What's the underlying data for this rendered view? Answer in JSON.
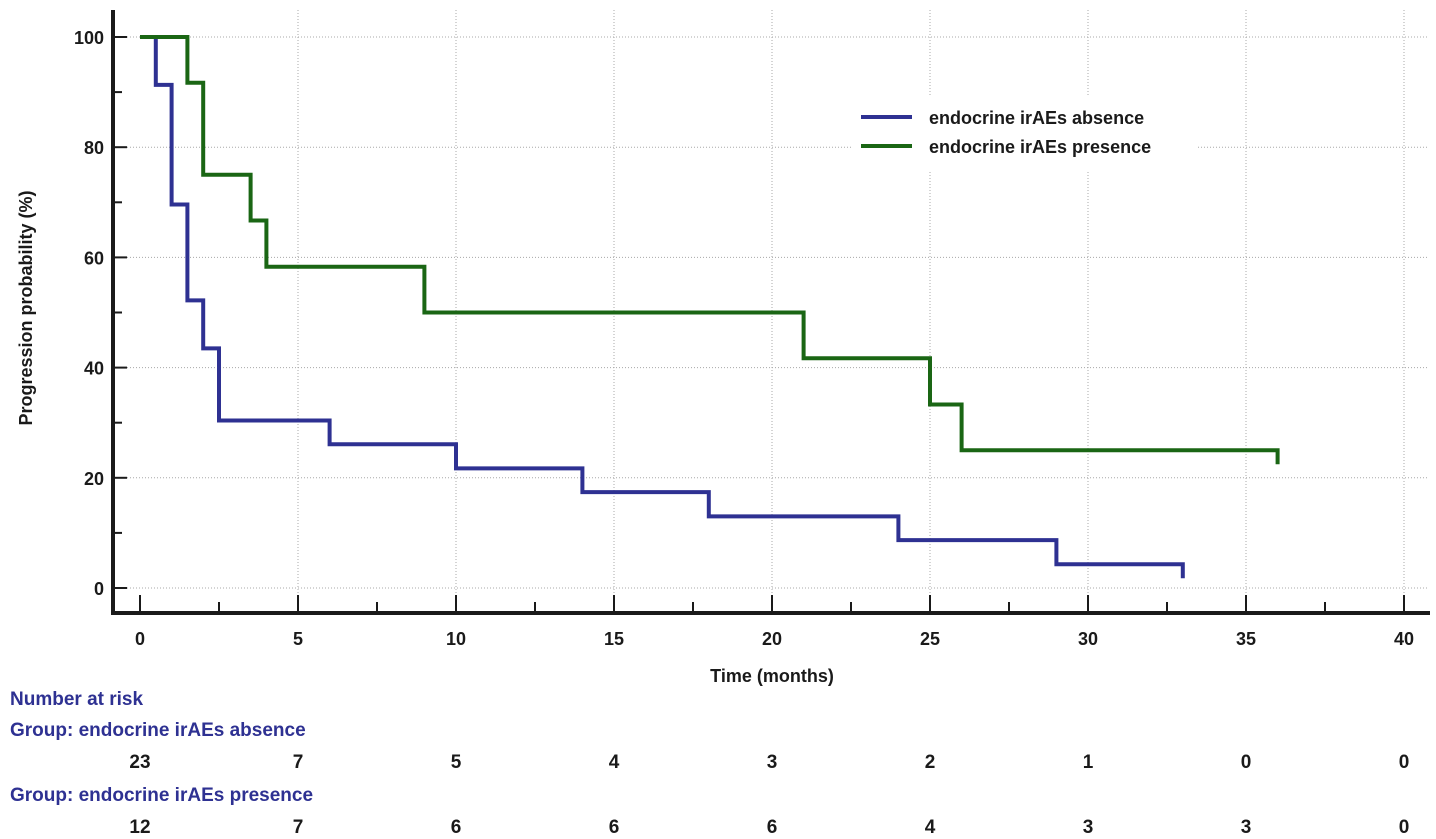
{
  "chart_data": {
    "type": "line",
    "subtype": "kaplan-meier step",
    "title": "",
    "xlabel": "Time (months)",
    "ylabel": "Progression probability (%)",
    "xlim": [
      0,
      40
    ],
    "ylim": [
      0,
      100
    ],
    "x_ticks": [
      0,
      5,
      10,
      15,
      20,
      25,
      30,
      35,
      40
    ],
    "y_ticks": [
      0,
      20,
      40,
      60,
      80,
      100
    ],
    "grid": true,
    "legend_position": "top-right",
    "series": [
      {
        "name": "endocrine irAEs absence",
        "color": "#2e3192",
        "steps": [
          [
            0,
            100
          ],
          [
            0.5,
            91.3
          ],
          [
            1,
            69.6
          ],
          [
            1.5,
            52.2
          ],
          [
            2,
            43.5
          ],
          [
            2.5,
            30.4
          ],
          [
            6,
            26.1
          ],
          [
            10,
            21.7
          ],
          [
            14,
            17.4
          ],
          [
            18,
            13.0
          ],
          [
            24,
            8.7
          ],
          [
            29,
            4.3
          ]
        ],
        "end_x": 33
      },
      {
        "name": "endocrine irAEs presence",
        "color": "#1a6614",
        "steps": [
          [
            0,
            100
          ],
          [
            1.5,
            91.7
          ],
          [
            2,
            75.0
          ],
          [
            3.5,
            66.7
          ],
          [
            4,
            58.3
          ],
          [
            9,
            50.0
          ],
          [
            21,
            41.7
          ],
          [
            25,
            33.3
          ],
          [
            26,
            25.0
          ]
        ],
        "end_x": 36
      }
    ],
    "risk_table": {
      "heading": "Number at risk",
      "times": [
        0,
        5,
        10,
        15,
        20,
        25,
        30,
        35,
        40
      ],
      "groups": [
        {
          "label": "Group: endocrine irAEs absence",
          "values": [
            "23",
            "7",
            "5",
            "4",
            "3",
            "2",
            "1",
            "0",
            "0"
          ]
        },
        {
          "label": "Group: endocrine irAEs presence",
          "values": [
            "12",
            "7",
            "6",
            "6",
            "6",
            "4",
            "3",
            "3",
            "0"
          ]
        }
      ]
    }
  }
}
